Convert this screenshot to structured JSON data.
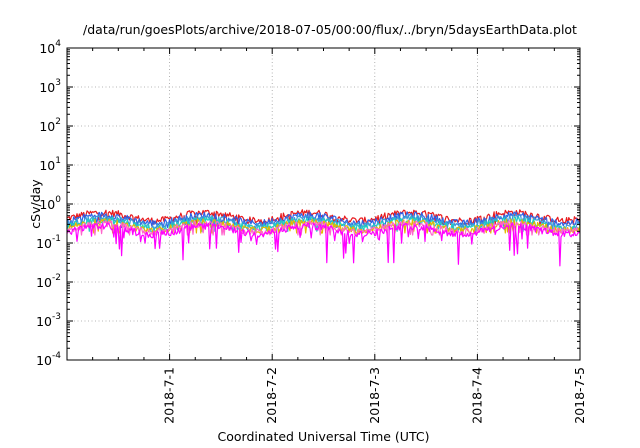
{
  "chart_data": {
    "type": "area",
    "title": "/data/run/goesPlots/archive/2018-07-05/00:00/flux/../bryn/5daysEarthData.plot",
    "xlabel": "Coordinated Universal Time (UTC)",
    "ylabel": "cSv/day",
    "yscale": "log",
    "ylim": [
      0.0001,
      10000
    ],
    "y_ticks": [
      {
        "base": "10",
        "exp": "-4",
        "value": 0.0001
      },
      {
        "base": "10",
        "exp": "-3",
        "value": 0.001
      },
      {
        "base": "10",
        "exp": "-2",
        "value": 0.01
      },
      {
        "base": "10",
        "exp": "-1",
        "value": 0.1
      },
      {
        "base": "10",
        "exp": "0",
        "value": 1
      },
      {
        "base": "10",
        "exp": "1",
        "value": 10
      },
      {
        "base": "10",
        "exp": "2",
        "value": 100
      },
      {
        "base": "10",
        "exp": "3",
        "value": 1000
      },
      {
        "base": "10",
        "exp": "4",
        "value": 10000
      }
    ],
    "xlim": [
      "2018-06-30 00:00",
      "2018-07-05 00:00"
    ],
    "x_ticks": [
      "2018-7-1",
      "2018-7-2",
      "2018-7-3",
      "2018-7-4",
      "2018-7-5"
    ],
    "grid": true,
    "series": [
      {
        "color": "#e8191d",
        "level": 0.58,
        "max": 0.85,
        "min": 0.3
      },
      {
        "color": "#2f5fe6",
        "level": 0.5,
        "max": 0.75,
        "min": 0.25
      },
      {
        "color": "#3a9ad9",
        "level": 0.42,
        "max": 0.6,
        "min": 0.22
      },
      {
        "color": "#21d0c0",
        "level": 0.37,
        "max": 0.5,
        "min": 0.2
      },
      {
        "color": "#e6b800",
        "level": 0.33,
        "max": 0.45,
        "min": 0.18
      },
      {
        "color": "#ff66cc",
        "level": 0.3,
        "max": 0.4,
        "min": 0.16
      },
      {
        "color": "#ff00ff",
        "level": 0.26,
        "max": 0.35,
        "min": 0.025
      }
    ]
  }
}
